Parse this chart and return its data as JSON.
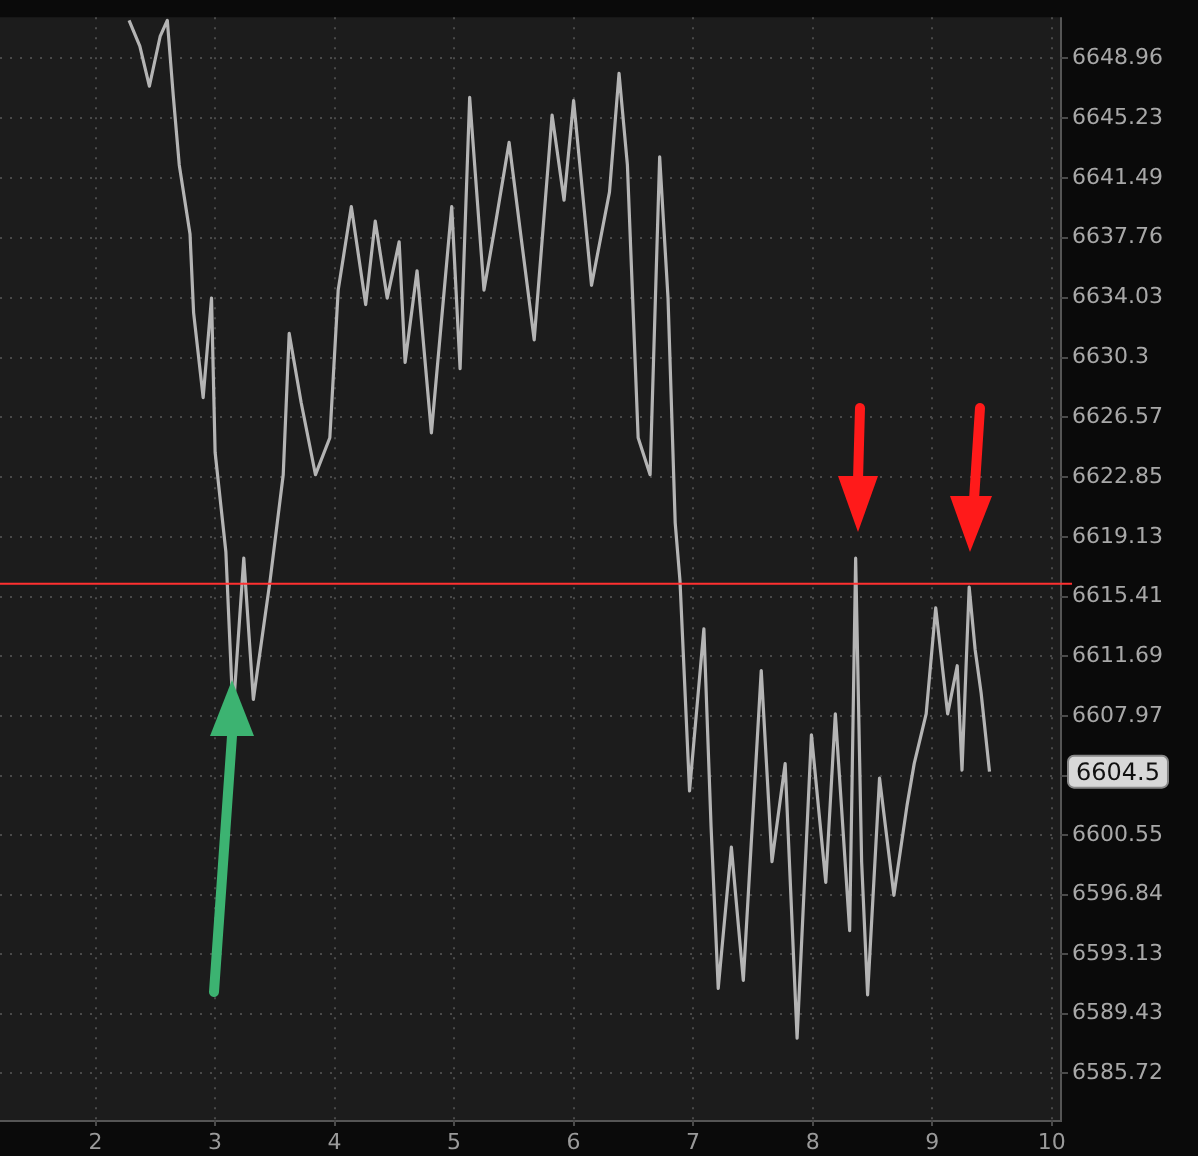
{
  "chart_data": {
    "type": "line",
    "color": "#b4b4b4",
    "x": [
      2.28,
      2.37,
      2.45,
      2.54,
      2.6,
      2.65,
      2.7,
      2.79,
      2.82,
      2.9,
      2.97,
      3.0,
      3.09,
      3.15,
      3.24,
      3.32,
      3.46,
      3.57,
      3.62,
      3.72,
      3.84,
      3.96,
      4.03,
      4.14,
      4.26,
      4.34,
      4.44,
      4.54,
      4.59,
      4.69,
      4.81,
      4.98,
      5.05,
      5.13,
      5.25,
      5.35,
      5.46,
      5.55,
      5.67,
      5.82,
      5.92,
      6.0,
      6.15,
      6.3,
      6.38,
      6.45,
      6.54,
      6.64,
      6.72,
      6.79,
      6.85,
      6.89,
      6.97,
      7.09,
      7.15,
      7.21,
      7.32,
      7.42,
      7.57,
      7.66,
      7.77,
      7.87,
      7.99,
      8.11,
      8.19,
      8.31,
      8.36,
      8.41,
      8.46,
      8.56,
      8.68,
      8.79,
      8.85,
      8.95,
      9.03,
      9.13,
      9.21,
      9.25,
      9.31,
      9.36,
      9.41,
      9.48
    ],
    "values": [
      6651.3,
      6649.7,
      6647.2,
      6650.3,
      6651.3,
      6646.6,
      6642.3,
      6638.0,
      6633.1,
      6627.8,
      6634.0,
      6624.4,
      6618.2,
      6608.1,
      6617.8,
      6609.0,
      6616.4,
      6623.0,
      6631.8,
      6627.5,
      6623.0,
      6625.3,
      6634.5,
      6639.7,
      6633.6,
      6638.8,
      6634.0,
      6637.5,
      6630.0,
      6635.7,
      6625.6,
      6639.7,
      6629.6,
      6646.5,
      6634.5,
      6638.8,
      6643.7,
      6638.4,
      6631.4,
      6645.4,
      6640.1,
      6646.3,
      6634.8,
      6640.6,
      6648.0,
      6642.3,
      6625.3,
      6623.0,
      6642.8,
      6634.0,
      6620.0,
      6616.4,
      6603.3,
      6613.4,
      6601.1,
      6591.0,
      6599.8,
      6591.5,
      6610.8,
      6598.9,
      6605.0,
      6587.9,
      6606.8,
      6597.6,
      6608.1,
      6594.6,
      6617.8,
      6598.9,
      6590.6,
      6604.1,
      6596.8,
      6602.4,
      6605.0,
      6608.1,
      6614.7,
      6608.1,
      6611.1,
      6604.6,
      6616.0,
      6612.1,
      6609.4,
      6604.5
    ],
    "xlim": [
      1.2,
      10.07
    ],
    "xticks": [
      2,
      3,
      4,
      5,
      6,
      7,
      8,
      9,
      10
    ],
    "ylim": [
      6582.8,
      6651.5
    ],
    "yticks": [
      6585.72,
      6589.43,
      6593.13,
      6596.84,
      6600.55,
      {
        "value": 6604.26,
        "label": null
      },
      6607.97,
      6611.69,
      6615.41,
      6619.13,
      6622.85,
      6626.57,
      6630.3,
      6634.03,
      6637.76,
      6641.49,
      6645.23,
      6648.96
    ],
    "grid": true,
    "ref_lines": [
      {
        "axis": "y",
        "value": 6616.2,
        "color": "#ff3030"
      }
    ],
    "annotations": [
      "6604.5"
    ]
  }
}
